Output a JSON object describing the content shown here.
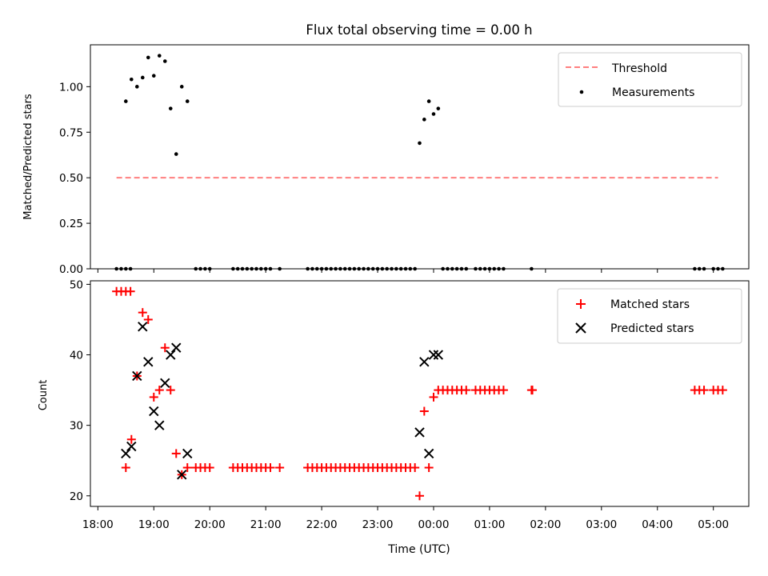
{
  "chart_data": [
    {
      "type": "scatter",
      "title": "Flux total observing time = 0.00 h",
      "xlabel": "",
      "ylabel": "Matched/Predicted stars",
      "ylim": [
        0,
        1.23
      ],
      "yticks": [
        0.0,
        0.25,
        0.5,
        0.75,
        1.0
      ],
      "ytick_labels": [
        "0.00",
        "0.25",
        "0.50",
        "0.75",
        "1.00"
      ],
      "legend_position": "top-right",
      "threshold": {
        "name": "Threshold",
        "value": 0.5,
        "x_start": "18:20",
        "x_end": "05:05",
        "color": "#ff7f7f"
      },
      "series": [
        {
          "name": "Measurements",
          "color": "#000000",
          "points": [
            [
              "18:20",
              0
            ],
            [
              "18:25",
              0
            ],
            [
              "18:30",
              0
            ],
            [
              "18:35",
              0
            ],
            [
              "18:30",
              0.92
            ],
            [
              "18:36",
              1.04
            ],
            [
              "18:42",
              1.0
            ],
            [
              "18:48",
              1.05
            ],
            [
              "18:54",
              1.16
            ],
            [
              "19:00",
              1.06
            ],
            [
              "19:06",
              1.17
            ],
            [
              "19:12",
              1.14
            ],
            [
              "19:18",
              0.88
            ],
            [
              "19:24",
              0.63
            ],
            [
              "19:30",
              1.0
            ],
            [
              "19:36",
              0.92
            ],
            [
              "19:45",
              0
            ],
            [
              "19:50",
              0
            ],
            [
              "19:55",
              0
            ],
            [
              "20:00",
              0
            ],
            [
              "20:25",
              0
            ],
            [
              "20:30",
              0
            ],
            [
              "20:35",
              0
            ],
            [
              "20:40",
              0
            ],
            [
              "20:45",
              0
            ],
            [
              "20:50",
              0
            ],
            [
              "20:55",
              0
            ],
            [
              "21:00",
              0
            ],
            [
              "21:05",
              0
            ],
            [
              "21:15",
              0
            ],
            [
              "21:45",
              0
            ],
            [
              "21:50",
              0
            ],
            [
              "21:55",
              0
            ],
            [
              "22:00",
              0
            ],
            [
              "22:05",
              0
            ],
            [
              "22:10",
              0
            ],
            [
              "22:15",
              0
            ],
            [
              "22:20",
              0
            ],
            [
              "22:25",
              0
            ],
            [
              "22:30",
              0
            ],
            [
              "22:35",
              0
            ],
            [
              "22:40",
              0
            ],
            [
              "22:45",
              0
            ],
            [
              "22:50",
              0
            ],
            [
              "22:55",
              0
            ],
            [
              "23:00",
              0
            ],
            [
              "23:05",
              0
            ],
            [
              "23:10",
              0
            ],
            [
              "23:15",
              0
            ],
            [
              "23:20",
              0
            ],
            [
              "23:25",
              0
            ],
            [
              "23:30",
              0
            ],
            [
              "23:35",
              0
            ],
            [
              "23:40",
              0
            ],
            [
              "23:45",
              0.69
            ],
            [
              "23:50",
              0.82
            ],
            [
              "23:55",
              0.92
            ],
            [
              "00:00",
              0.85
            ],
            [
              "00:05",
              0.88
            ],
            [
              "00:10",
              0
            ],
            [
              "00:15",
              0
            ],
            [
              "00:20",
              0
            ],
            [
              "00:25",
              0
            ],
            [
              "00:30",
              0
            ],
            [
              "00:35",
              0
            ],
            [
              "00:45",
              0
            ],
            [
              "00:50",
              0
            ],
            [
              "00:55",
              0
            ],
            [
              "01:00",
              0
            ],
            [
              "01:05",
              0
            ],
            [
              "01:10",
              0
            ],
            [
              "01:15",
              0
            ],
            [
              "01:45",
              0
            ],
            [
              "04:40",
              0
            ],
            [
              "04:45",
              0
            ],
            [
              "04:50",
              0
            ],
            [
              "05:00",
              0
            ],
            [
              "05:05",
              0
            ],
            [
              "05:10",
              0
            ]
          ]
        }
      ]
    },
    {
      "type": "scatter",
      "title": "",
      "xlabel": "Time (UTC)",
      "ylabel": "Count",
      "ylim": [
        18.5,
        50.5
      ],
      "yticks": [
        20,
        30,
        40,
        50
      ],
      "ytick_labels": [
        "20",
        "30",
        "40",
        "50"
      ],
      "xlim": [
        "17:52",
        "05:38"
      ],
      "xticks": [
        "18:00",
        "19:00",
        "20:00",
        "21:00",
        "22:00",
        "23:00",
        "00:00",
        "01:00",
        "02:00",
        "03:00",
        "04:00",
        "05:00"
      ],
      "xtick_labels": [
        "18:00",
        "19:00",
        "20:00",
        "21:00",
        "22:00",
        "23:00",
        "00:00",
        "01:00",
        "02:00",
        "03:00",
        "04:00",
        "05:00"
      ],
      "legend_position": "top-right",
      "series": [
        {
          "name": "Matched stars",
          "marker": "+",
          "color": "#ff0000",
          "points": [
            [
              "18:20",
              49
            ],
            [
              "18:25",
              49
            ],
            [
              "18:30",
              49
            ],
            [
              "18:35",
              49
            ],
            [
              "18:30",
              24
            ],
            [
              "18:36",
              28
            ],
            [
              "18:42",
              37
            ],
            [
              "18:48",
              46
            ],
            [
              "18:54",
              45
            ],
            [
              "19:00",
              34
            ],
            [
              "19:06",
              35
            ],
            [
              "19:12",
              41
            ],
            [
              "19:18",
              35
            ],
            [
              "19:24",
              26
            ],
            [
              "19:30",
              23
            ],
            [
              "19:36",
              24
            ],
            [
              "19:45",
              24
            ],
            [
              "19:50",
              24
            ],
            [
              "19:55",
              24
            ],
            [
              "20:00",
              24
            ],
            [
              "20:25",
              24
            ],
            [
              "20:30",
              24
            ],
            [
              "20:35",
              24
            ],
            [
              "20:40",
              24
            ],
            [
              "20:45",
              24
            ],
            [
              "20:50",
              24
            ],
            [
              "20:55",
              24
            ],
            [
              "21:00",
              24
            ],
            [
              "21:05",
              24
            ],
            [
              "21:15",
              24
            ],
            [
              "21:45",
              24
            ],
            [
              "21:50",
              24
            ],
            [
              "21:55",
              24
            ],
            [
              "22:00",
              24
            ],
            [
              "22:05",
              24
            ],
            [
              "22:10",
              24
            ],
            [
              "22:15",
              24
            ],
            [
              "22:20",
              24
            ],
            [
              "22:25",
              24
            ],
            [
              "22:30",
              24
            ],
            [
              "22:35",
              24
            ],
            [
              "22:40",
              24
            ],
            [
              "22:45",
              24
            ],
            [
              "22:50",
              24
            ],
            [
              "22:55",
              24
            ],
            [
              "23:00",
              24
            ],
            [
              "23:05",
              24
            ],
            [
              "23:10",
              24
            ],
            [
              "23:15",
              24
            ],
            [
              "23:20",
              24
            ],
            [
              "23:25",
              24
            ],
            [
              "23:30",
              24
            ],
            [
              "23:35",
              24
            ],
            [
              "23:40",
              24
            ],
            [
              "23:45",
              20
            ],
            [
              "23:50",
              32
            ],
            [
              "23:55",
              24
            ],
            [
              "00:00",
              34
            ],
            [
              "00:05",
              35
            ],
            [
              "00:10",
              35
            ],
            [
              "00:15",
              35
            ],
            [
              "00:20",
              35
            ],
            [
              "00:25",
              35
            ],
            [
              "00:30",
              35
            ],
            [
              "00:35",
              35
            ],
            [
              "00:45",
              35
            ],
            [
              "00:50",
              35
            ],
            [
              "00:55",
              35
            ],
            [
              "01:00",
              35
            ],
            [
              "01:05",
              35
            ],
            [
              "01:10",
              35
            ],
            [
              "01:15",
              35
            ],
            [
              "01:45",
              35
            ],
            [
              "01:46",
              35
            ],
            [
              "04:40",
              35
            ],
            [
              "04:45",
              35
            ],
            [
              "04:50",
              35
            ],
            [
              "05:00",
              35
            ],
            [
              "05:05",
              35
            ],
            [
              "05:10",
              35
            ]
          ]
        },
        {
          "name": "Predicted stars",
          "marker": "x",
          "color": "#000000",
          "points": [
            [
              "18:30",
              26
            ],
            [
              "18:36",
              27
            ],
            [
              "18:42",
              37
            ],
            [
              "18:48",
              44
            ],
            [
              "18:54",
              39
            ],
            [
              "19:00",
              32
            ],
            [
              "19:06",
              30
            ],
            [
              "19:12",
              36
            ],
            [
              "19:18",
              40
            ],
            [
              "19:24",
              41
            ],
            [
              "19:30",
              23
            ],
            [
              "19:36",
              26
            ],
            [
              "23:45",
              29
            ],
            [
              "23:50",
              39
            ],
            [
              "23:55",
              26
            ],
            [
              "00:00",
              40
            ],
            [
              "00:05",
              40
            ]
          ]
        }
      ]
    }
  ]
}
